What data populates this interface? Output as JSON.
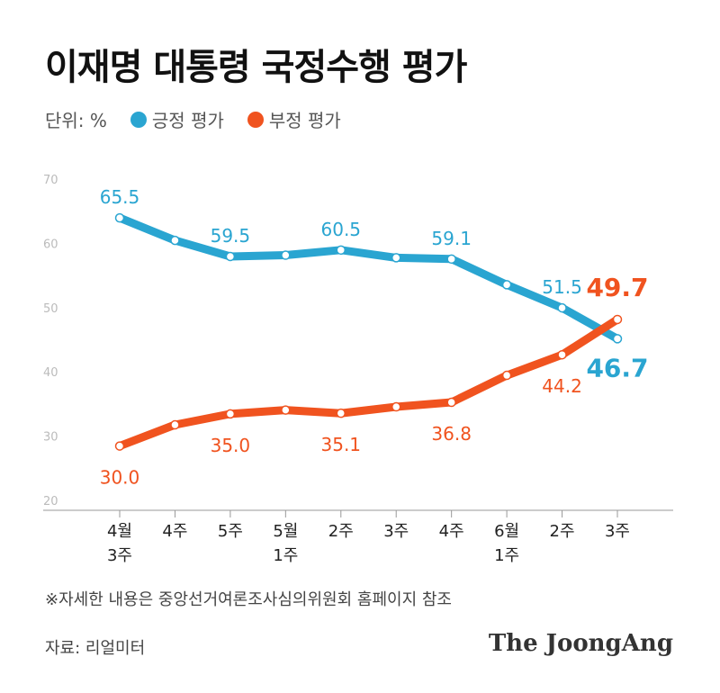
{
  "header": {
    "title": "이재명 대통령 국정수행 평가"
  },
  "legend": {
    "unit": "단위: %",
    "items": [
      {
        "label": "긍정 평가",
        "color": "#2aa5d1"
      },
      {
        "label": "부정 평가",
        "color": "#f0531f"
      }
    ]
  },
  "footnote": "※자세한 내용은 중앙선거여론조사심의위원회 홈페이지 참조",
  "source": "자료: 리얼미터",
  "brand": "The JoongAng",
  "chart_data": {
    "type": "line",
    "categories": [
      [
        "4월",
        "3주"
      ],
      [
        "4주"
      ],
      [
        "5주"
      ],
      [
        "5월",
        "1주"
      ],
      [
        "2주"
      ],
      [
        "3주"
      ],
      [
        "4주"
      ],
      [
        "6월",
        "1주"
      ],
      [
        "2주"
      ],
      [
        "3주"
      ]
    ],
    "ylim": [
      20,
      70
    ],
    "yticks": [
      20,
      30,
      40,
      50,
      60,
      70
    ],
    "grid": false,
    "series": [
      {
        "name": "긍정 평가",
        "color": "#2aa5d1",
        "values": [
          65.5,
          62.0,
          59.5,
          59.7,
          60.5,
          59.3,
          59.1,
          55.1,
          51.5,
          46.7
        ],
        "labels": [
          "65.5",
          null,
          "59.5",
          null,
          "60.5",
          null,
          "59.1",
          null,
          "51.5",
          "46.7"
        ]
      },
      {
        "name": "부정 평가",
        "color": "#f0531f",
        "values": [
          30.0,
          33.3,
          35.0,
          35.6,
          35.1,
          36.1,
          36.8,
          41.0,
          44.2,
          49.7
        ],
        "labels": [
          "30.0",
          null,
          "35.0",
          null,
          "35.1",
          null,
          "36.8",
          null,
          "44.2",
          "49.7"
        ]
      }
    ]
  }
}
